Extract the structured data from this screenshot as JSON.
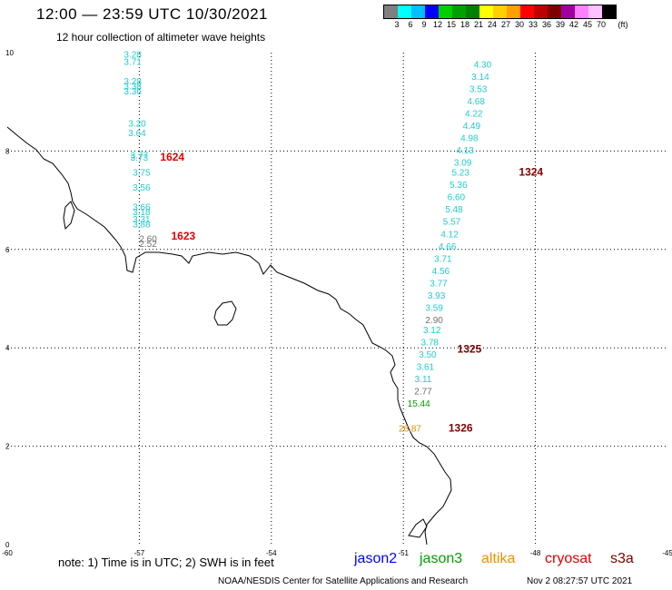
{
  "header": {
    "title": "12:00 — 23:59 UTC 10/30/2021",
    "subtitle": "12 hour collection of altimeter wave heights"
  },
  "colorbar": {
    "colors": [
      "#7f7f7f",
      "#00ffff",
      "#00bfff",
      "#0000ff",
      "#00d000",
      "#00a000",
      "#008000",
      "#ffff00",
      "#ffd000",
      "#ffa000",
      "#ff0000",
      "#c00000",
      "#800000",
      "#a000a0",
      "#ff80ff",
      "#ffc0ff",
      "#000000"
    ],
    "labels": [
      "3",
      "6",
      "9",
      "12",
      "15",
      "18",
      "21",
      "24",
      "27",
      "30",
      "33",
      "36",
      "39",
      "42",
      "45",
      "70"
    ],
    "unit": "(ft)"
  },
  "map": {
    "lon_range": [
      -60,
      -45
    ],
    "lat_range": [
      0,
      10
    ],
    "x_ticks": [
      "-60",
      "-57",
      "-54",
      "-51",
      "-48",
      "-45"
    ],
    "y_ticks": [
      "0",
      "2",
      "4",
      "6",
      "8",
      "10"
    ],
    "tracks": [
      {
        "satellite": "jason3",
        "color": "#22cccc",
        "points": [
          {
            "v": "3.28",
            "lon": -57.15,
            "lat": 9.9
          },
          {
            "v": "3.71",
            "lon": -57.15,
            "lat": 9.75
          },
          {
            "v": "3.28",
            "lon": -57.15,
            "lat": 9.35
          },
          {
            "v": "3.38",
            "lon": -57.15,
            "lat": 9.25
          },
          {
            "v": "3.36",
            "lon": -57.15,
            "lat": 9.15
          },
          {
            "v": "3.20",
            "lon": -57.05,
            "lat": 8.5
          },
          {
            "v": "3.64",
            "lon": -57.05,
            "lat": 8.3
          },
          {
            "v": "3.77",
            "lon": -57.0,
            "lat": 7.85
          },
          {
            "v": "3.73",
            "lon": -57.0,
            "lat": 7.8
          },
          {
            "v": "3.75",
            "lon": -56.95,
            "lat": 7.5
          },
          {
            "v": "3.56",
            "lon": -56.95,
            "lat": 7.2
          },
          {
            "v": "3.66",
            "lon": -56.95,
            "lat": 6.8
          },
          {
            "v": "3.18",
            "lon": -56.95,
            "lat": 6.7
          },
          {
            "v": "3.31",
            "lon": -56.95,
            "lat": 6.55
          },
          {
            "v": "3.88",
            "lon": -56.95,
            "lat": 6.45
          }
        ]
      },
      {
        "satellite": "jason3-flagged",
        "color": "#707070",
        "points": [
          {
            "v": "2.60",
            "lon": -56.8,
            "lat": 6.15
          },
          {
            "v": "2.52",
            "lon": -56.8,
            "lat": 6.05
          }
        ]
      },
      {
        "satellite": "jason3",
        "color": "#22cccc",
        "points": [
          {
            "v": "4.30",
            "lon": -49.2,
            "lat": 9.7
          },
          {
            "v": "3.14",
            "lon": -49.25,
            "lat": 9.45
          },
          {
            "v": "3.53",
            "lon": -49.3,
            "lat": 9.2
          },
          {
            "v": "4.68",
            "lon": -49.35,
            "lat": 8.95
          },
          {
            "v": "4.22",
            "lon": -49.4,
            "lat": 8.7
          },
          {
            "v": "4.49",
            "lon": -49.45,
            "lat": 8.45
          },
          {
            "v": "4.98",
            "lon": -49.5,
            "lat": 8.2
          },
          {
            "v": "4.13",
            "lon": -49.6,
            "lat": 7.95
          },
          {
            "v": "3.09",
            "lon": -49.65,
            "lat": 7.7
          },
          {
            "v": "5.23",
            "lon": -49.7,
            "lat": 7.5
          },
          {
            "v": "5.36",
            "lon": -49.75,
            "lat": 7.25
          },
          {
            "v": "6.60",
            "lon": -49.8,
            "lat": 7.0
          },
          {
            "v": "5.48",
            "lon": -49.85,
            "lat": 6.75
          },
          {
            "v": "5.57",
            "lon": -49.9,
            "lat": 6.5
          },
          {
            "v": "4.12",
            "lon": -49.95,
            "lat": 6.25
          },
          {
            "v": "4.66",
            "lon": -50.0,
            "lat": 6.0
          },
          {
            "v": "3.71",
            "lon": -50.1,
            "lat": 5.75
          },
          {
            "v": "4.56",
            "lon": -50.15,
            "lat": 5.5
          },
          {
            "v": "3.77",
            "lon": -50.2,
            "lat": 5.25
          },
          {
            "v": "3.93",
            "lon": -50.25,
            "lat": 5.0
          },
          {
            "v": "3.59",
            "lon": -50.3,
            "lat": 4.75
          },
          {
            "v": "3.12",
            "lon": -50.35,
            "lat": 4.3
          },
          {
            "v": "3.78",
            "lon": -50.4,
            "lat": 4.05
          },
          {
            "v": "3.50",
            "lon": -50.45,
            "lat": 3.8
          },
          {
            "v": "3.61",
            "lon": -50.5,
            "lat": 3.55
          },
          {
            "v": "3.11",
            "lon": -50.55,
            "lat": 3.3
          }
        ]
      },
      {
        "satellite": "jason3-flagged",
        "color": "#707070",
        "points": [
          {
            "v": "2.90",
            "lon": -50.3,
            "lat": 4.5
          },
          {
            "v": "2.77",
            "lon": -50.55,
            "lat": 3.05
          }
        ]
      },
      {
        "satellite": "jason3-green",
        "color": "#00a000",
        "points": [
          {
            "v": "15.44",
            "lon": -50.65,
            "lat": 2.8
          }
        ]
      },
      {
        "satellite": "altika",
        "color": "#e09000",
        "points": [
          {
            "v": "26.87",
            "lon": -50.85,
            "lat": 2.3
          }
        ]
      }
    ],
    "time_labels": [
      {
        "t": "1624",
        "lon": -56.25,
        "lat": 7.8,
        "color": "#e00000"
      },
      {
        "t": "1623",
        "lon": -56.0,
        "lat": 6.2,
        "color": "#e00000"
      },
      {
        "t": "1324",
        "lon": -48.1,
        "lat": 7.5,
        "color": "#800000"
      },
      {
        "t": "1325",
        "lon": -49.5,
        "lat": 3.9,
        "color": "#800000"
      },
      {
        "t": "1326",
        "lon": -49.7,
        "lat": 2.3,
        "color": "#800000"
      }
    ]
  },
  "note": "note:  1) Time is in UTC; 2) SWH is in feet",
  "satellites": [
    {
      "name": "jason2",
      "color": "#0000ff"
    },
    {
      "name": "jason3",
      "color": "#00a000"
    },
    {
      "name": "altika",
      "color": "#f09000"
    },
    {
      "name": "cryosat",
      "color": "#e00000"
    },
    {
      "name": "s3a",
      "color": "#800000"
    }
  ],
  "footer": "NOAA/NESDIS Center for Satellite Applications and Research",
  "footer_date": "Nov  2 08:27:57 UTC 2021"
}
